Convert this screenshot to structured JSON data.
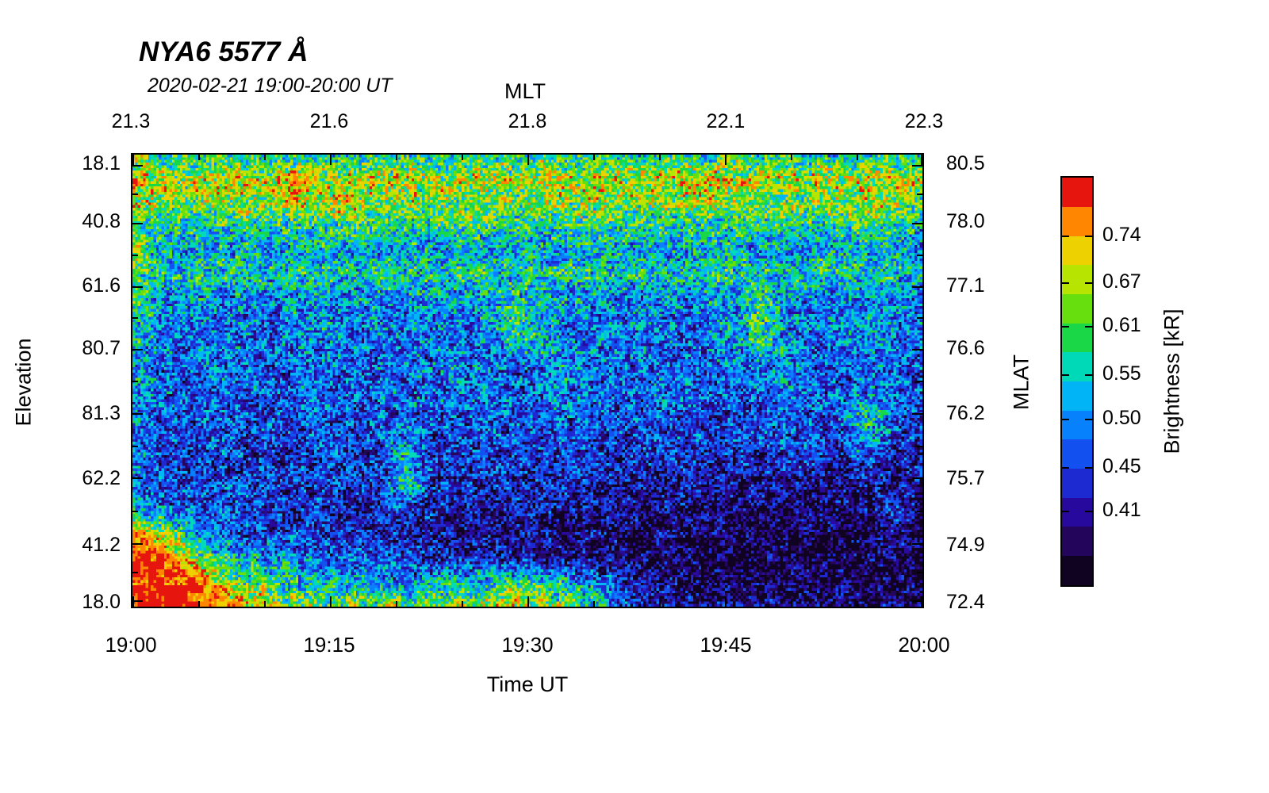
{
  "title": "NYA6 5577 Å",
  "subtitle": "2020-02-21 19:00-20:00 UT",
  "style": {
    "background": "#ffffff",
    "frame_color": "#000000",
    "text_color": "#000000"
  },
  "axes": {
    "top": {
      "label": "MLT",
      "ticks": [
        "21.3",
        "21.6",
        "21.8",
        "22.1",
        "22.3"
      ],
      "tick_pos": [
        0.0,
        0.25,
        0.5,
        0.75,
        1.0
      ]
    },
    "bottom": {
      "label": "Time UT",
      "ticks": [
        "19:00",
        "19:15",
        "19:30",
        "19:45",
        "20:00"
      ],
      "tick_pos": [
        0.0,
        0.25,
        0.5,
        0.75,
        1.0
      ]
    },
    "left": {
      "label": "Elevation",
      "ticks": [
        "18.1",
        "40.8",
        "61.6",
        "80.7",
        "81.3",
        "62.2",
        "41.2",
        "18.0"
      ],
      "tick_pos": [
        0.023,
        0.15,
        0.291,
        0.429,
        0.572,
        0.714,
        0.86,
        0.986
      ]
    },
    "right": {
      "label": "MLAT",
      "ticks": [
        "80.5",
        "78.0",
        "77.1",
        "76.6",
        "76.2",
        "75.7",
        "74.9",
        "72.4"
      ],
      "tick_pos": [
        0.023,
        0.15,
        0.291,
        0.429,
        0.572,
        0.714,
        0.86,
        0.986
      ]
    }
  },
  "colorbar": {
    "label": "Brightness [kR]",
    "ticks": [
      "0.74",
      "0.67",
      "0.61",
      "0.55",
      "0.50",
      "0.45",
      "0.41"
    ],
    "vmin": 0.35,
    "vmax": 0.84,
    "scale": "log",
    "levels": 14,
    "colormap_stops": [
      [
        0.0,
        "#020206"
      ],
      [
        0.09,
        "#23054b"
      ],
      [
        0.18,
        "#280aa0"
      ],
      [
        0.28,
        "#1937e6"
      ],
      [
        0.38,
        "#0a78ff"
      ],
      [
        0.47,
        "#00b9f5"
      ],
      [
        0.54,
        "#00dcb4"
      ],
      [
        0.62,
        "#1ed732"
      ],
      [
        0.7,
        "#82e100"
      ],
      [
        0.78,
        "#d7e600"
      ],
      [
        0.85,
        "#ffc300"
      ],
      [
        0.91,
        "#ff6e00"
      ],
      [
        0.96,
        "#f0190f"
      ],
      [
        1.0,
        "#96000a"
      ]
    ]
  },
  "chart_data": {
    "type": "heatmap",
    "title": "NYA6 5577 Å",
    "subtitle": "2020-02-21 19:00-20:00 UT",
    "x": {
      "label": "Time UT",
      "start": "19:00",
      "end": "20:00",
      "ticks": [
        "19:00",
        "19:15",
        "19:30",
        "19:45",
        "20:00"
      ]
    },
    "x2": {
      "label": "MLT",
      "ticks": [
        21.3,
        21.6,
        21.8,
        22.1,
        22.3
      ]
    },
    "y": {
      "label": "Elevation",
      "ticks_top_to_bottom": [
        18.1,
        40.8,
        61.6,
        80.7,
        81.3,
        62.2,
        41.2,
        18.0
      ]
    },
    "y2": {
      "label": "MLAT",
      "ticks_top_to_bottom": [
        80.5,
        78.0,
        77.1,
        76.6,
        76.2,
        75.7,
        74.9,
        72.4
      ]
    },
    "value": {
      "label": "Brightness [kR]",
      "scale": "log",
      "display_min": 0.35,
      "display_max": 0.84,
      "colorbar_ticks": [
        0.74,
        0.67,
        0.61,
        0.55,
        0.5,
        0.45,
        0.41
      ]
    },
    "features": [
      "bright yellow-orange horizontal band near top (low northern elevations) across whole hour",
      "saturated dark-red blob in bottom-left corner, 19:00-19:06 at low southern elevations",
      "yellow-orange arc along bottom edge roughly 19:08-19:35",
      "very dark (near-black) low-brightness region in bottom-right half after ~19:20",
      "faint bright vertical streak near 19:12 in top band and diagonal green streaks near 19:30 and 19:46 mid-elevations",
      "background mostly noisy blue-cyan-green speckle"
    ],
    "grid_rows": 20,
    "grid_cols": 30,
    "grid_units": "kR",
    "grid": [
      [
        0.62,
        0.57,
        0.57,
        0.58,
        0.57,
        0.56,
        0.58,
        0.57,
        0.57,
        0.58,
        0.57,
        0.56,
        0.57,
        0.58,
        0.57,
        0.57,
        0.58,
        0.57,
        0.56,
        0.57,
        0.58,
        0.57,
        0.57,
        0.56,
        0.58,
        0.57,
        0.57,
        0.58,
        0.57,
        0.56
      ],
      [
        0.72,
        0.68,
        0.67,
        0.68,
        0.67,
        0.66,
        0.74,
        0.68,
        0.68,
        0.67,
        0.68,
        0.67,
        0.68,
        0.67,
        0.66,
        0.68,
        0.67,
        0.68,
        0.67,
        0.66,
        0.68,
        0.67,
        0.68,
        0.67,
        0.68,
        0.67,
        0.66,
        0.68,
        0.67,
        0.66
      ],
      [
        0.68,
        0.64,
        0.64,
        0.65,
        0.64,
        0.63,
        0.7,
        0.64,
        0.73,
        0.64,
        0.64,
        0.65,
        0.64,
        0.64,
        0.63,
        0.64,
        0.65,
        0.64,
        0.64,
        0.63,
        0.64,
        0.65,
        0.64,
        0.64,
        0.63,
        0.64,
        0.64,
        0.65,
        0.64,
        0.62
      ],
      [
        0.62,
        0.57,
        0.57,
        0.58,
        0.57,
        0.56,
        0.57,
        0.58,
        0.57,
        0.57,
        0.56,
        0.57,
        0.58,
        0.57,
        0.57,
        0.56,
        0.57,
        0.58,
        0.57,
        0.56,
        0.57,
        0.57,
        0.58,
        0.57,
        0.56,
        0.57,
        0.57,
        0.58,
        0.57,
        0.55
      ],
      [
        0.64,
        0.53,
        0.52,
        0.53,
        0.52,
        0.51,
        0.52,
        0.53,
        0.52,
        0.52,
        0.53,
        0.52,
        0.52,
        0.53,
        0.52,
        0.51,
        0.52,
        0.53,
        0.52,
        0.52,
        0.51,
        0.52,
        0.53,
        0.52,
        0.52,
        0.51,
        0.52,
        0.52,
        0.53,
        0.5
      ],
      [
        0.62,
        0.56,
        0.56,
        0.57,
        0.56,
        0.55,
        0.56,
        0.57,
        0.56,
        0.56,
        0.57,
        0.56,
        0.56,
        0.57,
        0.56,
        0.55,
        0.56,
        0.57,
        0.56,
        0.56,
        0.55,
        0.56,
        0.57,
        0.56,
        0.55,
        0.56,
        0.56,
        0.57,
        0.56,
        0.54
      ],
      [
        0.6,
        0.5,
        0.5,
        0.51,
        0.5,
        0.49,
        0.5,
        0.51,
        0.5,
        0.5,
        0.51,
        0.5,
        0.5,
        0.51,
        0.54,
        0.54,
        0.5,
        0.51,
        0.5,
        0.5,
        0.49,
        0.5,
        0.51,
        0.56,
        0.5,
        0.49,
        0.5,
        0.5,
        0.51,
        0.48
      ],
      [
        0.58,
        0.49,
        0.49,
        0.5,
        0.49,
        0.48,
        0.49,
        0.5,
        0.49,
        0.49,
        0.5,
        0.49,
        0.49,
        0.5,
        0.6,
        0.52,
        0.49,
        0.5,
        0.49,
        0.49,
        0.48,
        0.49,
        0.5,
        0.61,
        0.49,
        0.48,
        0.52,
        0.49,
        0.5,
        0.47
      ],
      [
        0.56,
        0.48,
        0.48,
        0.49,
        0.48,
        0.47,
        0.48,
        0.49,
        0.48,
        0.48,
        0.49,
        0.48,
        0.48,
        0.49,
        0.52,
        0.57,
        0.48,
        0.49,
        0.48,
        0.48,
        0.47,
        0.48,
        0.49,
        0.55,
        0.52,
        0.47,
        0.48,
        0.48,
        0.49,
        0.46
      ],
      [
        0.54,
        0.47,
        0.47,
        0.48,
        0.47,
        0.46,
        0.47,
        0.48,
        0.47,
        0.47,
        0.48,
        0.47,
        0.51,
        0.48,
        0.47,
        0.48,
        0.53,
        0.48,
        0.47,
        0.47,
        0.46,
        0.47,
        0.48,
        0.47,
        0.52,
        0.46,
        0.47,
        0.47,
        0.48,
        0.45
      ],
      [
        0.52,
        0.47,
        0.47,
        0.48,
        0.47,
        0.46,
        0.47,
        0.48,
        0.47,
        0.47,
        0.48,
        0.47,
        0.47,
        0.48,
        0.47,
        0.47,
        0.48,
        0.47,
        0.46,
        0.47,
        0.48,
        0.47,
        0.47,
        0.46,
        0.48,
        0.47,
        0.47,
        0.48,
        0.47,
        0.45
      ],
      [
        0.51,
        0.46,
        0.46,
        0.47,
        0.46,
        0.45,
        0.46,
        0.47,
        0.46,
        0.46,
        0.47,
        0.46,
        0.46,
        0.47,
        0.46,
        0.46,
        0.47,
        0.46,
        0.45,
        0.46,
        0.47,
        0.46,
        0.46,
        0.45,
        0.47,
        0.46,
        0.46,
        0.58,
        0.46,
        0.44
      ],
      [
        0.5,
        0.45,
        0.45,
        0.46,
        0.45,
        0.44,
        0.45,
        0.46,
        0.45,
        0.45,
        0.5,
        0.45,
        0.45,
        0.46,
        0.45,
        0.45,
        0.46,
        0.45,
        0.44,
        0.45,
        0.46,
        0.45,
        0.45,
        0.44,
        0.46,
        0.45,
        0.45,
        0.52,
        0.45,
        0.43
      ],
      [
        0.49,
        0.45,
        0.44,
        0.45,
        0.44,
        0.44,
        0.44,
        0.45,
        0.44,
        0.44,
        0.54,
        0.44,
        0.44,
        0.45,
        0.44,
        0.44,
        0.45,
        0.44,
        0.43,
        0.44,
        0.43,
        0.43,
        0.43,
        0.42,
        0.43,
        0.43,
        0.42,
        0.44,
        0.43,
        0.42
      ],
      [
        0.48,
        0.46,
        0.46,
        0.46,
        0.45,
        0.45,
        0.44,
        0.44,
        0.44,
        0.43,
        0.56,
        0.43,
        0.43,
        0.43,
        0.42,
        0.42,
        0.42,
        0.42,
        0.41,
        0.41,
        0.41,
        0.41,
        0.4,
        0.4,
        0.4,
        0.4,
        0.4,
        0.41,
        0.4,
        0.39
      ],
      [
        0.55,
        0.5,
        0.48,
        0.46,
        0.46,
        0.44,
        0.43,
        0.43,
        0.42,
        0.42,
        0.44,
        0.42,
        0.41,
        0.41,
        0.41,
        0.41,
        0.4,
        0.4,
        0.4,
        0.39,
        0.39,
        0.39,
        0.39,
        0.38,
        0.38,
        0.38,
        0.38,
        0.39,
        0.46,
        0.38
      ],
      [
        0.76,
        0.66,
        0.55,
        0.5,
        0.46,
        0.45,
        0.45,
        0.44,
        0.44,
        0.43,
        0.42,
        0.41,
        0.41,
        0.4,
        0.4,
        0.4,
        0.39,
        0.39,
        0.39,
        0.38,
        0.38,
        0.38,
        0.38,
        0.37,
        0.37,
        0.37,
        0.37,
        0.38,
        0.4,
        0.37
      ],
      [
        0.82,
        0.8,
        0.7,
        0.58,
        0.52,
        0.5,
        0.49,
        0.48,
        0.47,
        0.46,
        0.45,
        0.43,
        0.42,
        0.41,
        0.41,
        0.41,
        0.4,
        0.39,
        0.39,
        0.38,
        0.38,
        0.37,
        0.37,
        0.37,
        0.37,
        0.36,
        0.37,
        0.37,
        0.38,
        0.36
      ],
      [
        0.83,
        0.82,
        0.8,
        0.72,
        0.62,
        0.58,
        0.55,
        0.54,
        0.52,
        0.5,
        0.5,
        0.52,
        0.54,
        0.56,
        0.58,
        0.58,
        0.54,
        0.48,
        0.42,
        0.4,
        0.39,
        0.38,
        0.38,
        0.37,
        0.37,
        0.37,
        0.37,
        0.37,
        0.38,
        0.36
      ],
      [
        0.83,
        0.83,
        0.82,
        0.78,
        0.72,
        0.68,
        0.64,
        0.62,
        0.62,
        0.62,
        0.64,
        0.64,
        0.65,
        0.64,
        0.66,
        0.64,
        0.62,
        0.55,
        0.46,
        0.42,
        0.41,
        0.4,
        0.4,
        0.39,
        0.39,
        0.39,
        0.39,
        0.39,
        0.4,
        0.38
      ]
    ]
  }
}
